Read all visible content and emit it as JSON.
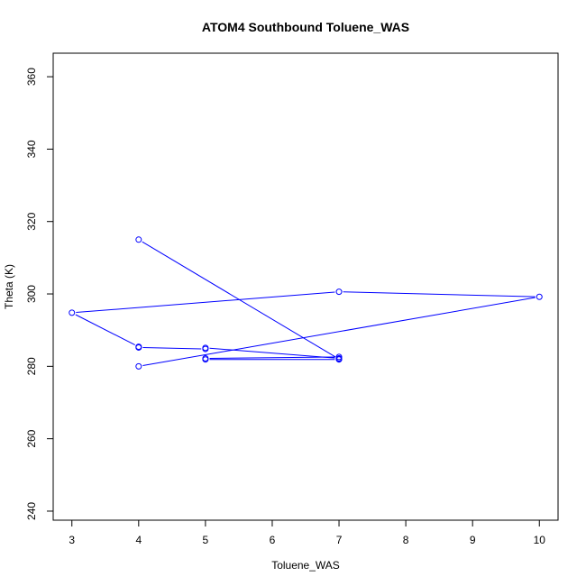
{
  "chart_data": {
    "type": "line",
    "title": "ATOM4 Southbound Toluene_WAS",
    "xlabel": "Toluene_WAS",
    "ylabel": "Theta (K)",
    "xlim": [
      2.72,
      10.28
    ],
    "ylim": [
      237.5,
      366.5
    ],
    "xticks": [
      3,
      4,
      5,
      6,
      7,
      8,
      9,
      10
    ],
    "yticks": [
      240,
      260,
      280,
      300,
      320,
      340,
      360
    ],
    "grid": false,
    "markers": "open-circle",
    "colors": {
      "series": "#0000ff",
      "axes": "#000000",
      "background": "#ffffff"
    },
    "series": [
      {
        "name": "",
        "x": [
          4,
          7,
          7,
          5,
          5,
          7,
          7,
          5,
          5,
          4,
          4,
          3,
          7,
          10,
          4
        ],
        "y": [
          315.0,
          282.0,
          282.6,
          282.2,
          281.9,
          281.9,
          282.2,
          285.1,
          284.8,
          285.2,
          285.4,
          294.8,
          300.6,
          299.2,
          280.0
        ]
      }
    ]
  }
}
